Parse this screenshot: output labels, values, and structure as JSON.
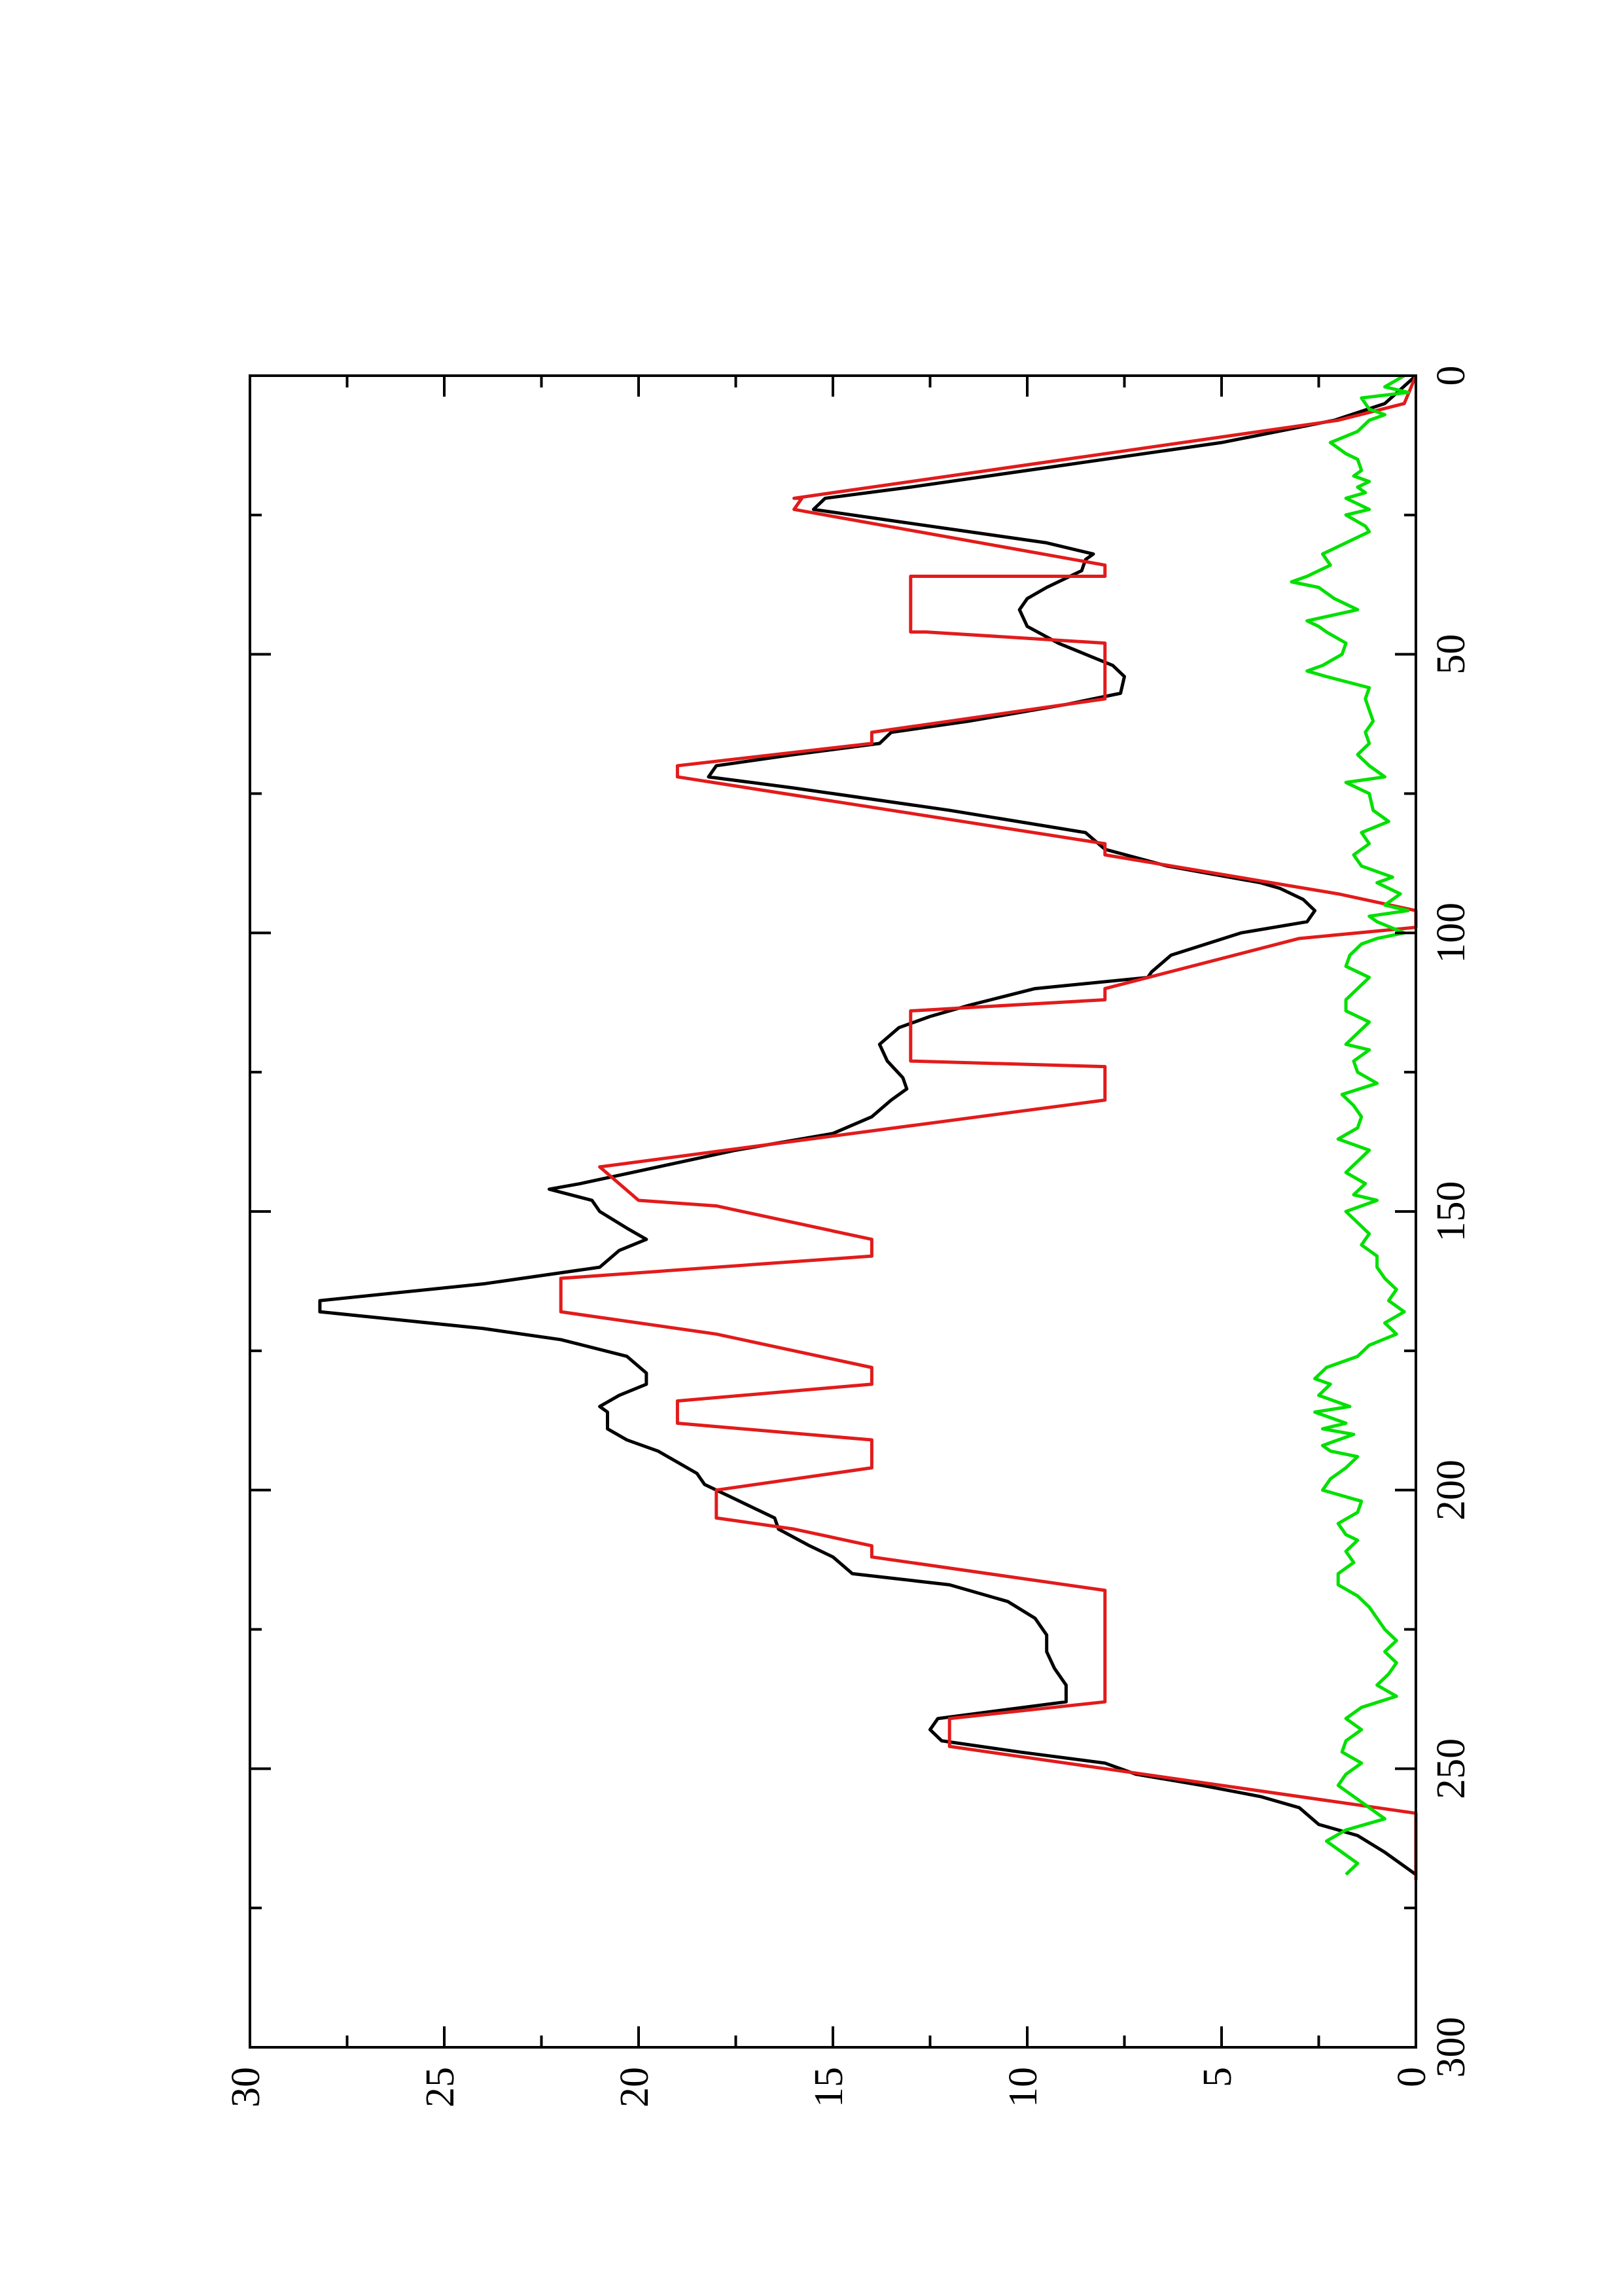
{
  "chart_data": {
    "type": "line",
    "orientation": "rotated-90-ccw",
    "xlim": [
      0,
      300
    ],
    "ylim": [
      0,
      30
    ],
    "x_ticks": [
      0,
      50,
      100,
      150,
      200,
      250,
      300
    ],
    "y_ticks": [
      0,
      5,
      10,
      15,
      20,
      25,
      30
    ],
    "x_tick_labels": [
      "0",
      "50",
      "100",
      "150",
      "200",
      "250",
      "300"
    ],
    "y_tick_labels": [
      "0",
      "5",
      "10",
      "15",
      "20",
      "25",
      "30"
    ],
    "grid": false,
    "legend": "none",
    "series": [
      {
        "color": "#000000",
        "points": [
          [
            0,
            0
          ],
          [
            5,
            0.8
          ],
          [
            8,
            2.1
          ],
          [
            12,
            5
          ],
          [
            16,
            9
          ],
          [
            20,
            13
          ],
          [
            22,
            15.2
          ],
          [
            24,
            15.5
          ],
          [
            26,
            13.5
          ],
          [
            28,
            11.5
          ],
          [
            30,
            9.5
          ],
          [
            32,
            8.3
          ],
          [
            33,
            8.5
          ],
          [
            35,
            8.6
          ],
          [
            38,
            9.5
          ],
          [
            40,
            10
          ],
          [
            42,
            10.2
          ],
          [
            45,
            10.0
          ],
          [
            48,
            9.2
          ],
          [
            50,
            8.5
          ],
          [
            52,
            7.8
          ],
          [
            54,
            7.5
          ],
          [
            57,
            7.6
          ],
          [
            59,
            9
          ],
          [
            62,
            11.5
          ],
          [
            64,
            13.5
          ],
          [
            66,
            13.8
          ],
          [
            68,
            16
          ],
          [
            70,
            18
          ],
          [
            72,
            18.2
          ],
          [
            74,
            16
          ],
          [
            78,
            12
          ],
          [
            82,
            8.5
          ],
          [
            85,
            8
          ],
          [
            88,
            6.4
          ],
          [
            91,
            4.0
          ],
          [
            92,
            3.5
          ],
          [
            94,
            2.9
          ],
          [
            96,
            2.6
          ],
          [
            98,
            2.8
          ],
          [
            100,
            4.5
          ],
          [
            104,
            6.3
          ],
          [
            107,
            6.8
          ],
          [
            108,
            6.9
          ],
          [
            110,
            9.8
          ],
          [
            113,
            11.5
          ],
          [
            115,
            12.5
          ],
          [
            117,
            13.3
          ],
          [
            120,
            13.8
          ],
          [
            123,
            13.6
          ],
          [
            126,
            13.2
          ],
          [
            128,
            13.1
          ],
          [
            130,
            13.5
          ],
          [
            133,
            14.0
          ],
          [
            136,
            15
          ],
          [
            139,
            17.5
          ],
          [
            142,
            19.5
          ],
          [
            145,
            21.5
          ],
          [
            146,
            22.3
          ],
          [
            148,
            21.2
          ],
          [
            150,
            21.0
          ],
          [
            153,
            20.3
          ],
          [
            155,
            19.8
          ],
          [
            157,
            20.5
          ],
          [
            160,
            21.0
          ],
          [
            163,
            24
          ],
          [
            166,
            28.2
          ],
          [
            168,
            28.2
          ],
          [
            171,
            24
          ],
          [
            173,
            22
          ],
          [
            176,
            20.3
          ],
          [
            179,
            19.8
          ],
          [
            181,
            19.8
          ],
          [
            183,
            20.5
          ],
          [
            185,
            21.0
          ],
          [
            186,
            20.8
          ],
          [
            189,
            20.8
          ],
          [
            191,
            20.3
          ],
          [
            193,
            19.5
          ],
          [
            195,
            19.0
          ],
          [
            197,
            18.5
          ],
          [
            199,
            18.3
          ],
          [
            201,
            17.7
          ],
          [
            203,
            17.1
          ],
          [
            205,
            16.5
          ],
          [
            207,
            16.4
          ],
          [
            210,
            15.6
          ],
          [
            212,
            15.0
          ],
          [
            215,
            14.5
          ],
          [
            217,
            12
          ],
          [
            220,
            10.5
          ],
          [
            223,
            9.8
          ],
          [
            226,
            9.5
          ],
          [
            229,
            9.5
          ],
          [
            232,
            9.3
          ],
          [
            235,
            9.0
          ],
          [
            238,
            9.0
          ],
          [
            241,
            12.3
          ],
          [
            243,
            12.5
          ],
          [
            245,
            12.2
          ],
          [
            247,
            10.2
          ],
          [
            249,
            8.0
          ],
          [
            251,
            7.2
          ],
          [
            253,
            5.5
          ],
          [
            255,
            4.0
          ],
          [
            257,
            3.0
          ],
          [
            260,
            2.5
          ],
          [
            262,
            1.5
          ],
          [
            265,
            0.8
          ],
          [
            269,
            0
          ]
        ]
      },
      {
        "color": "#e21b1b",
        "points": [
          [
            0,
            0
          ],
          [
            5,
            0.3
          ],
          [
            8,
            2
          ],
          [
            22,
            16
          ],
          [
            22,
            15.8
          ],
          [
            24,
            16
          ],
          [
            34,
            8
          ],
          [
            36,
            8
          ],
          [
            36,
            13
          ],
          [
            46,
            13
          ],
          [
            46,
            12.6
          ],
          [
            48,
            8
          ],
          [
            58,
            8
          ],
          [
            64,
            14
          ],
          [
            66,
            14
          ],
          [
            70,
            19
          ],
          [
            72,
            19
          ],
          [
            84,
            8
          ],
          [
            86,
            8
          ],
          [
            93,
            2
          ],
          [
            96,
            0
          ],
          [
            99,
            0
          ],
          [
            101,
            3
          ],
          [
            110,
            8
          ],
          [
            112,
            8
          ],
          [
            114,
            13
          ],
          [
            123,
            13
          ],
          [
            124,
            8
          ],
          [
            130,
            8
          ],
          [
            142,
            21
          ],
          [
            148,
            20
          ],
          [
            149,
            18
          ],
          [
            155,
            14
          ],
          [
            158,
            14
          ],
          [
            162,
            22
          ],
          [
            168,
            22
          ],
          [
            172,
            18
          ],
          [
            178,
            14
          ],
          [
            181,
            14
          ],
          [
            184,
            19
          ],
          [
            188,
            19
          ],
          [
            191,
            14
          ],
          [
            196,
            14
          ],
          [
            200,
            18
          ],
          [
            205,
            18
          ],
          [
            207,
            16
          ],
          [
            210,
            14
          ],
          [
            212,
            14
          ],
          [
            218,
            8
          ],
          [
            238,
            8
          ],
          [
            241,
            12
          ],
          [
            246,
            12
          ],
          [
            249,
            9
          ],
          [
            250,
            8
          ],
          [
            258,
            0
          ],
          [
            270,
            0
          ]
        ]
      },
      {
        "color": "#00e000",
        "points": [
          [
            0,
            0.3
          ],
          [
            2,
            0.8
          ],
          [
            3,
            0.2
          ],
          [
            4,
            1.4
          ],
          [
            6,
            1.2
          ],
          [
            7,
            0.8
          ],
          [
            8,
            1.2
          ],
          [
            10,
            1.5
          ],
          [
            12,
            2.2
          ],
          [
            14,
            1.8
          ],
          [
            15,
            1.5
          ],
          [
            17,
            1.4
          ],
          [
            18,
            1.6
          ],
          [
            19,
            1.2
          ],
          [
            20,
            1.5
          ],
          [
            21,
            1.3
          ],
          [
            22,
            1.8
          ],
          [
            23,
            1.5
          ],
          [
            24,
            1.2
          ],
          [
            25,
            1.8
          ],
          [
            27,
            1.3
          ],
          [
            28,
            1.2
          ],
          [
            30,
            1.8
          ],
          [
            32,
            2.4
          ],
          [
            34,
            2.2
          ],
          [
            36,
            2.8
          ],
          [
            37,
            3.2
          ],
          [
            38,
            2.5
          ],
          [
            40,
            2.1
          ],
          [
            42,
            1.5
          ],
          [
            44,
            2.8
          ],
          [
            45,
            2.5
          ],
          [
            46,
            2.3
          ],
          [
            48,
            1.8
          ],
          [
            50,
            1.9
          ],
          [
            52,
            2.4
          ],
          [
            53,
            2.8
          ],
          [
            54,
            2.3
          ],
          [
            56,
            1.2
          ],
          [
            58,
            1.3
          ],
          [
            60,
            1.2
          ],
          [
            62,
            1.1
          ],
          [
            64,
            1.3
          ],
          [
            66,
            1.2
          ],
          [
            68,
            1.5
          ],
          [
            70,
            1.2
          ],
          [
            72,
            0.8
          ],
          [
            73,
            1.8
          ],
          [
            75,
            1.2
          ],
          [
            78,
            1.1
          ],
          [
            80,
            0.7
          ],
          [
            82,
            1.4
          ],
          [
            84,
            1.2
          ],
          [
            86,
            1.6
          ],
          [
            88,
            1.4
          ],
          [
            90,
            0.6
          ],
          [
            91,
            1.0
          ],
          [
            93,
            0.4
          ],
          [
            95,
            0.8
          ],
          [
            96,
            0.2
          ],
          [
            97,
            1.2
          ],
          [
            98,
            1.0
          ],
          [
            100,
            0.3
          ],
          [
            101,
            1.0
          ],
          [
            102,
            1.4
          ],
          [
            104,
            1.7
          ],
          [
            106,
            1.8
          ],
          [
            108,
            1.2
          ],
          [
            110,
            1.5
          ],
          [
            112,
            1.8
          ],
          [
            114,
            1.8
          ],
          [
            116,
            1.2
          ],
          [
            118,
            1.5
          ],
          [
            120,
            1.8
          ],
          [
            121,
            1.2
          ],
          [
            123,
            1.6
          ],
          [
            125,
            1.5
          ],
          [
            127,
            1.0
          ],
          [
            129,
            1.9
          ],
          [
            131,
            1.6
          ],
          [
            133,
            1.4
          ],
          [
            135,
            1.5
          ],
          [
            137,
            2.0
          ],
          [
            139,
            1.2
          ],
          [
            141,
            1.5
          ],
          [
            143,
            1.8
          ],
          [
            145,
            1.3
          ],
          [
            147,
            1.6
          ],
          [
            148,
            1.0
          ],
          [
            150,
            1.8
          ],
          [
            152,
            1.5
          ],
          [
            154,
            1.2
          ],
          [
            156,
            1.4
          ],
          [
            158,
            1.0
          ],
          [
            160,
            1.0
          ],
          [
            162,
            0.8
          ],
          [
            164,
            0.5
          ],
          [
            166,
            0.7
          ],
          [
            168,
            0.3
          ],
          [
            170,
            0.8
          ],
          [
            172,
            0.5
          ],
          [
            174,
            1.2
          ],
          [
            176,
            1.5
          ],
          [
            178,
            2.3
          ],
          [
            180,
            2.6
          ],
          [
            181,
            2.2
          ],
          [
            183,
            2.5
          ],
          [
            185,
            1.7
          ],
          [
            186,
            2.6
          ],
          [
            187,
            2.2
          ],
          [
            188,
            1.8
          ],
          [
            189,
            2.4
          ],
          [
            190,
            1.6
          ],
          [
            192,
            2.4
          ],
          [
            193,
            2.2
          ],
          [
            194,
            1.5
          ],
          [
            196,
            1.8
          ],
          [
            198,
            2.2
          ],
          [
            200,
            2.4
          ],
          [
            202,
            1.4
          ],
          [
            204,
            1.5
          ],
          [
            206,
            2.0
          ],
          [
            208,
            1.8
          ],
          [
            209,
            1.5
          ],
          [
            211,
            1.8
          ],
          [
            213,
            1.6
          ],
          [
            215,
            2.0
          ],
          [
            217,
            2.0
          ],
          [
            219,
            1.5
          ],
          [
            221,
            1.2
          ],
          [
            223,
            1.0
          ],
          [
            225,
            0.8
          ],
          [
            227,
            0.5
          ],
          [
            229,
            0.8
          ],
          [
            231,
            0.5
          ],
          [
            233,
            0.7
          ],
          [
            235,
            1.0
          ],
          [
            237,
            0.5
          ],
          [
            239,
            1.4
          ],
          [
            241,
            1.8
          ],
          [
            243,
            1.4
          ],
          [
            245,
            1.8
          ],
          [
            247,
            1.9
          ],
          [
            249,
            1.4
          ],
          [
            251,
            1.8
          ],
          [
            253,
            2.0
          ],
          [
            255,
            1.6
          ],
          [
            257,
            1.2
          ],
          [
            259,
            0.8
          ],
          [
            261,
            1.8
          ],
          [
            263,
            2.3
          ],
          [
            265,
            1.9
          ],
          [
            267,
            1.5
          ],
          [
            269,
            1.8
          ]
        ]
      }
    ]
  }
}
